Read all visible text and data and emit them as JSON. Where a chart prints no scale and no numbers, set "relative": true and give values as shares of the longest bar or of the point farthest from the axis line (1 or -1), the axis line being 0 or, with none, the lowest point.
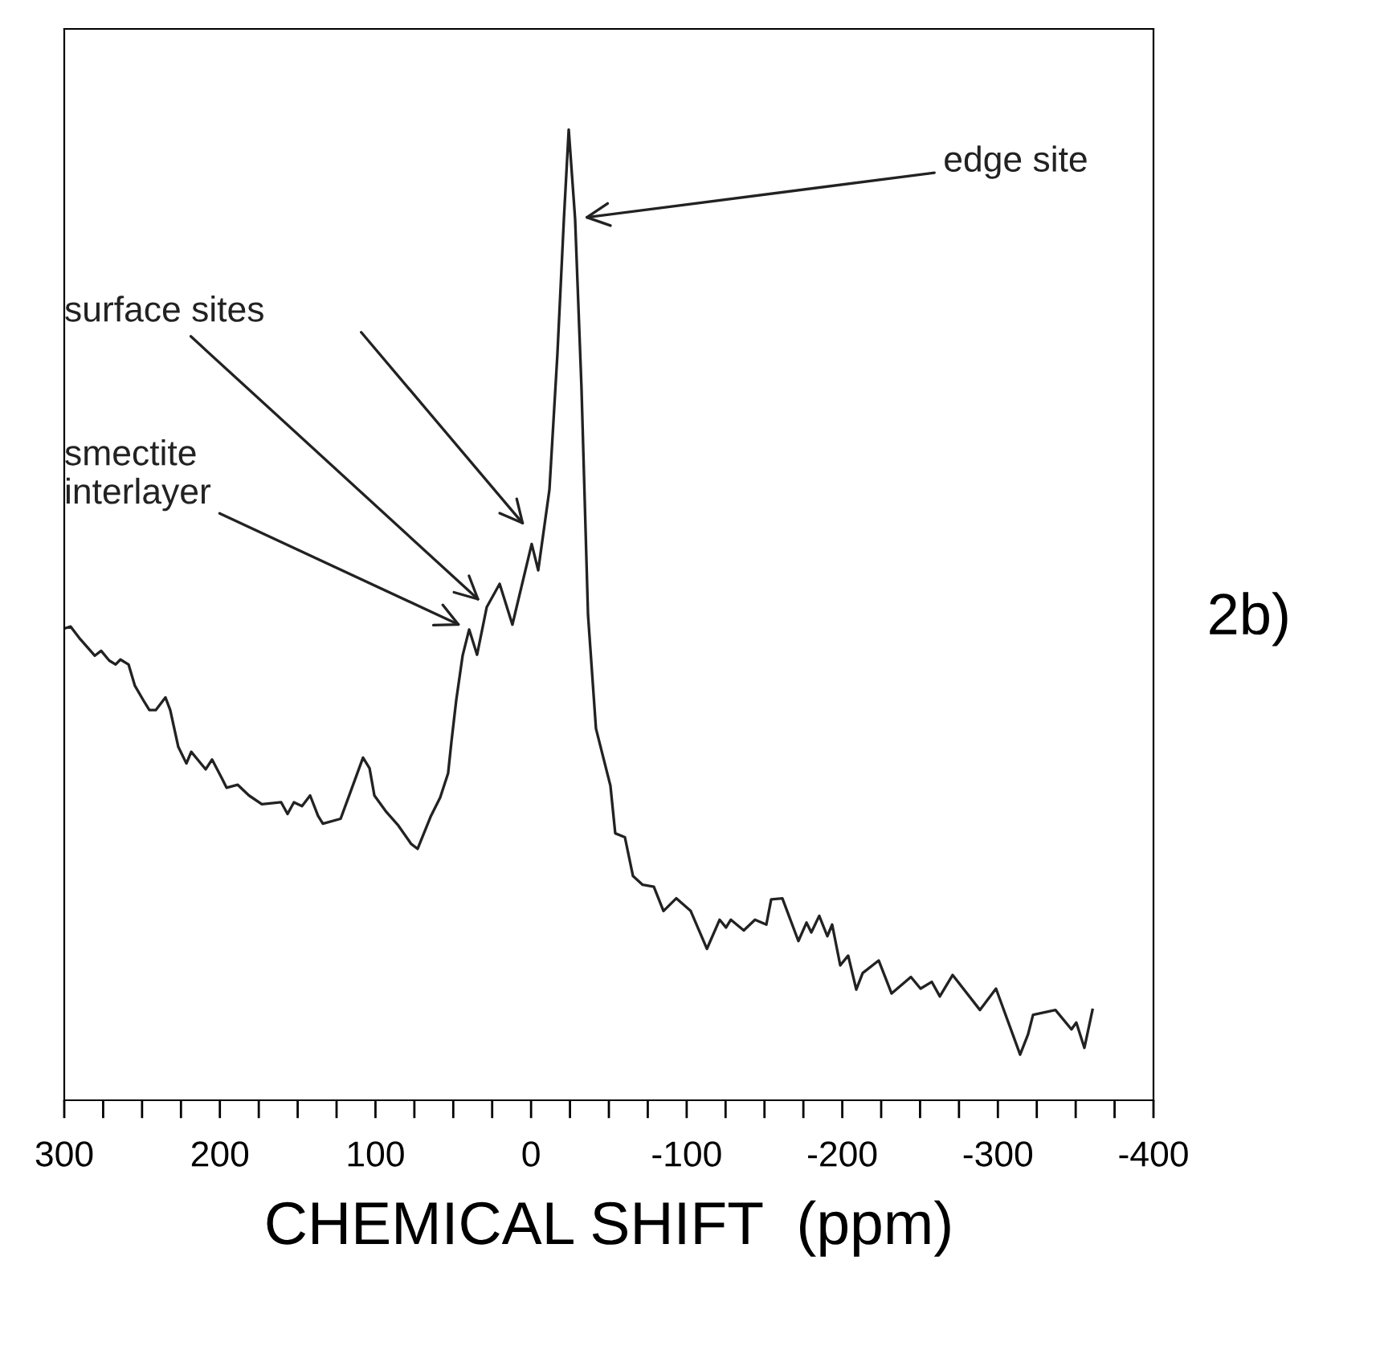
{
  "chart_data": {
    "type": "line",
    "relative": true,
    "xlabel": "CHEMICAL SHIFT  (ppm)",
    "color": "#222222",
    "marker": "none",
    "line_style": "solid",
    "grid": false,
    "legend": false,
    "xlim": [
      300,
      -400
    ],
    "xticks": [
      300,
      {
        "value": 275,
        "label": null
      },
      {
        "value": 250,
        "label": null
      },
      {
        "value": 225,
        "label": null
      },
      200,
      {
        "value": 175,
        "label": null
      },
      {
        "value": 150,
        "label": null
      },
      {
        "value": 125,
        "label": null
      },
      100,
      {
        "value": 75,
        "label": null
      },
      {
        "value": 50,
        "label": null
      },
      {
        "value": 25,
        "label": null
      },
      0,
      {
        "value": -25,
        "label": null
      },
      {
        "value": -50,
        "label": null
      },
      {
        "value": -75,
        "label": null
      },
      -100,
      {
        "value": -125,
        "label": null
      },
      {
        "value": -150,
        "label": null
      },
      {
        "value": -175,
        "label": null
      },
      -200,
      {
        "value": -225,
        "label": null
      },
      {
        "value": -250,
        "label": null
      },
      {
        "value": -275,
        "label": null
      },
      -300,
      {
        "value": -325,
        "label": null
      },
      {
        "value": -350,
        "label": null
      },
      {
        "value": -375,
        "label": null
      },
      -400
    ],
    "x": [
      300,
      295.9,
      289.7,
      280.4,
      276.3,
      271.1,
      267.0,
      263.9,
      258.7,
      254.6,
      248.4,
      245.3,
      241.2,
      235.0,
      231.9,
      226.7,
      221.5,
      218.4,
      214.3,
      209.1,
      205.0,
      198.8,
      195.7,
      188.5,
      181.3,
      173.0,
      160.6,
      156.5,
      152.4,
      147.2,
      142.0,
      136.9,
      133.8,
      122.4,
      116.2,
      108.0,
      103.8,
      100.7,
      93.5,
      85.3,
      77.0,
      72.9,
      64.6,
      58.4,
      53.3,
      51.2,
      48.1,
      44.0,
      39.8,
      34.7,
      28.5,
      20.2,
      12.0,
      -0.4,
      -4.6,
      -11.8,
      -16.9,
      -21.1,
      -24.2,
      -28.3,
      -32.4,
      -36.6,
      -41.7,
      -51.0,
      -54.1,
      -60.3,
      -65.5,
      -71.7,
      -78.9,
      -85.1,
      -93.3,
      -102.6,
      -113.0,
      -121.2,
      -125.3,
      -128.4,
      -136.7,
      -143.9,
      -151.2,
      -154.3,
      -161.5,
      -171.8,
      -177.0,
      -180.1,
      -185.2,
      -190.4,
      -193.5,
      -198.7,
      -203.8,
      -209.0,
      -213.1,
      -223.4,
      -231.7,
      -244.1,
      -250.3,
      -257.5,
      -262.7,
      -270.9,
      -288.5,
      -298.8,
      -314.3,
      -319.4,
      -322.6,
      -337.0,
      -347.3,
      -350.4,
      -355.6,
      -360.8
    ],
    "values": [
      0.486,
      0.488,
      0.475,
      0.458,
      0.463,
      0.453,
      0.449,
      0.454,
      0.449,
      0.427,
      0.41,
      0.402,
      0.402,
      0.415,
      0.402,
      0.364,
      0.347,
      0.359,
      0.351,
      0.341,
      0.351,
      0.332,
      0.322,
      0.325,
      0.314,
      0.305,
      0.307,
      0.295,
      0.307,
      0.303,
      0.314,
      0.293,
      0.285,
      0.29,
      0.317,
      0.353,
      0.342,
      0.314,
      0.298,
      0.283,
      0.264,
      0.259,
      0.292,
      0.312,
      0.337,
      0.369,
      0.412,
      0.458,
      0.485,
      0.459,
      0.508,
      0.532,
      0.49,
      0.573,
      0.546,
      0.629,
      0.768,
      0.908,
      1.0,
      0.908,
      0.734,
      0.5,
      0.383,
      0.324,
      0.275,
      0.271,
      0.231,
      0.222,
      0.22,
      0.195,
      0.208,
      0.195,
      0.156,
      0.186,
      0.178,
      0.186,
      0.175,
      0.186,
      0.181,
      0.207,
      0.208,
      0.164,
      0.183,
      0.173,
      0.19,
      0.169,
      0.181,
      0.139,
      0.149,
      0.114,
      0.131,
      0.144,
      0.11,
      0.127,
      0.115,
      0.122,
      0.107,
      0.129,
      0.093,
      0.115,
      0.047,
      0.068,
      0.088,
      0.093,
      0.073,
      0.08,
      0.054,
      0.093
    ],
    "annotations": [
      {
        "text": "edge site",
        "x": -28.3,
        "y": 0.908
      },
      {
        "text": "surface sites",
        "x": 28.5,
        "y": 0.508
      },
      {
        "text": "smectite\ninterlayer",
        "x": 39.8,
        "y": 0.485
      },
      "2b)"
    ]
  }
}
